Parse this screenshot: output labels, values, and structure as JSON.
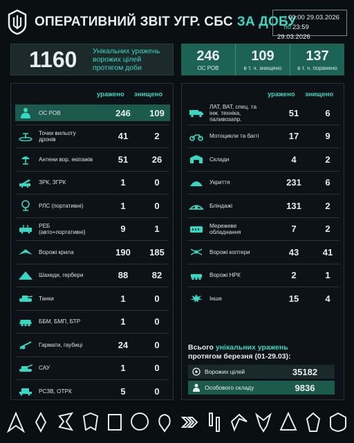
{
  "header": {
    "title_main": "ОПЕРАТИВНИЙ ЗВІТ УГР. СБС",
    "title_accent": "ЗА ДОБУ",
    "period_from_label": "з",
    "period_from": "00:00 29.03.2026",
    "period_to_label": "по",
    "period_to": "23:59 29.03.2026"
  },
  "summary": {
    "unique_total": "1160",
    "unique_desc_1": "Унікальних уражень",
    "unique_desc_2": "ворожих цілей",
    "unique_desc_3": "протягом доби",
    "personnel": [
      {
        "n": "246",
        "t": "ОС РОВ"
      },
      {
        "n": "109",
        "t": "в т. ч. знищено"
      },
      {
        "n": "137",
        "t": "в т. ч. поранено"
      }
    ]
  },
  "columns": {
    "hit": "уражено",
    "destroyed": "знищено"
  },
  "left_rows": [
    {
      "name": "ОС РОВ",
      "hit": "246",
      "destroyed": "109",
      "icon": "soldier-icon"
    },
    {
      "name": "Точки вильоту дронів",
      "hit": "41",
      "destroyed": "2",
      "icon": "drone-launch-icon"
    },
    {
      "name": "Антени вор. екіпажів",
      "hit": "51",
      "destroyed": "26",
      "icon": "antenna-icon"
    },
    {
      "name": "ЗРК, ЗГРК",
      "hit": "1",
      "destroyed": "0",
      "icon": "sam-icon"
    },
    {
      "name": "РЛС (портативні)",
      "hit": "1",
      "destroyed": "0",
      "icon": "radar-icon"
    },
    {
      "name": "РЕБ (авто+портативні)",
      "hit": "9",
      "destroyed": "1",
      "icon": "ew-icon"
    },
    {
      "name": "Ворожі крила",
      "hit": "190",
      "destroyed": "185",
      "icon": "wing-icon"
    },
    {
      "name": "Шахеди, гербери",
      "hit": "88",
      "destroyed": "82",
      "icon": "shahed-icon"
    },
    {
      "name": "Танки",
      "hit": "1",
      "destroyed": "0",
      "icon": "tank-icon"
    },
    {
      "name": "ББМ, БМП, БТР",
      "hit": "1",
      "destroyed": "0",
      "icon": "apc-icon"
    },
    {
      "name": "Гармати, гаубиці",
      "hit": "24",
      "destroyed": "0",
      "icon": "howitzer-icon"
    },
    {
      "name": "САУ",
      "hit": "1",
      "destroyed": "0",
      "icon": "spg-icon"
    },
    {
      "name": "РСЗВ, ОТРК",
      "hit": "5",
      "destroyed": "0",
      "icon": "mlrs-icon"
    }
  ],
  "right_rows": [
    {
      "name": "ЛАТ, ВАТ, спец. та інж. техніка, паливозапр.",
      "hit": "51",
      "destroyed": "6",
      "icon": "truck-icon"
    },
    {
      "name": "Мотоцикли та баггі",
      "hit": "17",
      "destroyed": "9",
      "icon": "motorcycle-icon"
    },
    {
      "name": "Склади",
      "hit": "4",
      "destroyed": "2",
      "icon": "warehouse-icon"
    },
    {
      "name": "Укриття",
      "hit": "231",
      "destroyed": "6",
      "icon": "shelter-icon"
    },
    {
      "name": "Бліндажі",
      "hit": "131",
      "destroyed": "2",
      "icon": "dugout-icon"
    },
    {
      "name": "Мережеве обладнання",
      "hit": "7",
      "destroyed": "2",
      "icon": "network-icon"
    },
    {
      "name": "Ворожі коптери",
      "hit": "43",
      "destroyed": "41",
      "icon": "copter-icon"
    },
    {
      "name": "Ворожі НРК",
      "hit": "2",
      "destroyed": "1",
      "icon": "ugv-icon"
    },
    {
      "name": "Інше",
      "hit": "15",
      "destroyed": "4",
      "icon": "other-icon"
    }
  ],
  "monthly": {
    "title_1": "Всього",
    "title_accent": "унікальних уражень",
    "title_2": "протягом березня (01-29.03):",
    "targets_label": "Ворожих цілей",
    "targets_value": "35182",
    "personnel_label": "Особового складу",
    "personnel_value": "9836"
  },
  "colors": {
    "accent": "#35d9c3",
    "highlight": "#1c5a4e",
    "background": "#0a0f12"
  }
}
